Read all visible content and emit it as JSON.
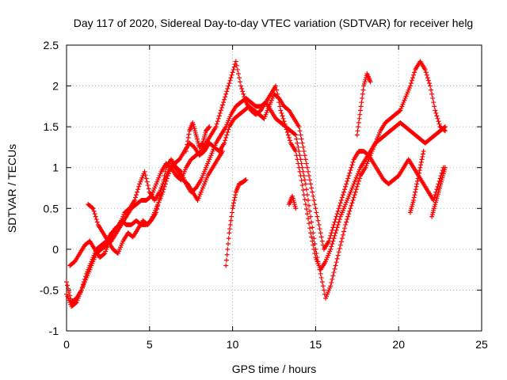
{
  "chart_data": {
    "type": "scatter",
    "title": "Day 117 of 2020, Sidereal Day-to-day VTEC variation (SDTVAR) for receiver helg",
    "xlabel": "GPS time / hours",
    "ylabel": "SDTVAR / TECUs",
    "xlim": [
      0,
      25
    ],
    "ylim": [
      -1,
      2.5
    ],
    "xticks": [
      "0",
      "5",
      "10",
      "15",
      "20",
      "25"
    ],
    "yticks": [
      "-1",
      "-0.5",
      "0",
      "0.5",
      "1",
      "1.5",
      "2",
      "2.5"
    ],
    "grid": true,
    "legend": "none",
    "marker": "+",
    "color": "#ff0000",
    "series": [
      {
        "x": [
          0.0,
          0.3,
          0.6,
          0.9,
          1.2,
          1.5,
          1.8,
          2.1,
          2.4,
          2.7,
          3.0,
          3.3,
          3.6,
          3.9,
          4.2,
          4.5,
          4.8,
          5.1,
          5.4,
          5.7,
          6.0,
          6.3,
          6.6,
          6.9,
          7.2,
          7.5,
          7.8,
          8.1,
          8.4,
          8.7,
          9.0,
          9.3,
          9.6,
          9.9,
          10.2,
          10.5,
          10.8,
          11.1,
          11.4,
          11.7,
          12.0,
          12.3,
          12.6,
          12.9,
          13.2,
          13.5,
          13.8,
          14.1,
          14.4,
          14.7,
          15.0,
          15.3,
          15.6,
          15.9,
          16.2,
          16.5,
          16.8,
          17.1,
          17.4,
          17.7,
          18.0,
          18.3,
          18.6,
          18.9,
          19.2,
          19.5,
          19.8,
          20.1,
          20.4,
          20.7,
          21.0,
          21.3,
          21.6,
          21.9,
          22.2,
          22.5,
          22.8
        ],
        "y": [
          -0.4,
          -0.65,
          -0.6,
          -0.5,
          -0.3,
          -0.15,
          0.0,
          0.05,
          0.1,
          0.2,
          0.25,
          0.35,
          0.3,
          0.3,
          0.35,
          0.3,
          0.3,
          0.35,
          0.45,
          0.7,
          1.0,
          1.1,
          1.0,
          0.95,
          0.8,
          0.7,
          0.75,
          0.85,
          1.0,
          1.15,
          1.3,
          1.4,
          1.5,
          1.65,
          1.75,
          1.8,
          1.85,
          1.8,
          1.75,
          1.75,
          1.8,
          1.9,
          2.0,
          1.7,
          1.5,
          1.3,
          1.2,
          0.9,
          0.55,
          0.2,
          -0.1,
          -0.25,
          -0.15,
          0.0,
          0.2,
          0.4,
          0.55,
          0.7,
          0.85,
          1.0,
          1.1,
          1.2,
          1.3,
          1.35,
          1.4,
          1.45,
          1.5,
          1.55,
          1.5,
          1.45,
          1.4,
          1.35,
          1.3,
          1.35,
          1.4,
          1.45,
          1.5
        ]
      },
      {
        "x": [
          0.0,
          0.3,
          0.6,
          0.9,
          1.2,
          1.5,
          1.8,
          2.1,
          2.4,
          2.7,
          3.0,
          3.3,
          3.6,
          3.9,
          4.2,
          4.5,
          4.8,
          5.1,
          5.4,
          5.7,
          6.0,
          6.3,
          6.6,
          6.9,
          7.2,
          7.5,
          7.8,
          8.1,
          8.4,
          8.7,
          9.0,
          9.3,
          9.6,
          9.9,
          10.2,
          10.5,
          10.8,
          11.1,
          11.4,
          11.7,
          12.0,
          12.3,
          12.6,
          12.9,
          13.2,
          13.5,
          13.8,
          14.1,
          14.4,
          14.7,
          15.0,
          15.3,
          15.6,
          15.9,
          16.2,
          16.5,
          16.8,
          17.1,
          17.4,
          17.7,
          18.0,
          18.3,
          18.6,
          18.9,
          19.2,
          19.5,
          19.8,
          20.1,
          20.4,
          20.7,
          21.0,
          21.3,
          21.6,
          21.9,
          22.2,
          22.5,
          22.8
        ],
        "y": [
          -0.55,
          -0.7,
          -0.65,
          -0.5,
          -0.35,
          -0.2,
          -0.05,
          0.0,
          0.05,
          0.1,
          0.2,
          0.3,
          0.4,
          0.5,
          0.55,
          0.6,
          0.6,
          0.65,
          0.8,
          0.95,
          1.05,
          1.0,
          0.9,
          0.85,
          1.0,
          1.1,
          1.15,
          1.2,
          1.3,
          1.4,
          1.5,
          1.7,
          1.9,
          2.1,
          2.3,
          2.0,
          1.8,
          1.7,
          1.65,
          1.7,
          1.8,
          1.7,
          1.6,
          1.55,
          1.5,
          1.45,
          1.4,
          1.1,
          0.8,
          0.4,
          0.0,
          -0.3,
          -0.6,
          -0.45,
          -0.2,
          0.05,
          0.3,
          0.5,
          0.7,
          0.9,
          1.0,
          1.15,
          1.3,
          1.45,
          1.55,
          1.6,
          1.65,
          1.7,
          1.85,
          2.0,
          2.2,
          2.3,
          2.2,
          2.0,
          1.7,
          1.5,
          1.45
        ]
      },
      {
        "x": [
          0.2,
          0.5,
          0.8,
          1.1,
          1.4,
          1.7,
          2.0,
          2.3,
          2.6,
          2.9,
          3.2,
          3.5,
          3.8,
          4.1,
          4.4,
          4.7,
          5.0,
          5.3,
          5.6,
          5.9,
          6.2,
          6.5,
          6.8,
          7.1,
          7.4,
          7.7,
          8.0,
          8.3,
          8.6,
          8.9,
          9.2,
          9.5,
          9.8,
          10.1,
          10.4,
          10.7,
          11.0,
          11.3,
          11.6,
          11.9,
          12.2,
          12.5,
          12.8,
          13.1,
          13.4,
          13.7,
          14.0,
          14.3,
          14.6,
          14.9,
          15.2,
          15.5,
          15.8,
          16.1,
          16.4,
          16.7,
          17.0,
          17.3,
          17.6,
          17.9,
          18.2,
          18.5,
          18.8,
          19.1,
          19.4,
          19.7,
          20.0,
          20.3,
          20.6,
          20.9,
          21.2,
          21.5,
          21.8,
          22.1,
          22.4,
          22.7
        ],
        "y": [
          -0.2,
          -0.15,
          -0.05,
          0.05,
          0.1,
          0.0,
          -0.1,
          -0.05,
          0.1,
          0.25,
          0.3,
          0.45,
          0.5,
          0.6,
          0.8,
          0.95,
          0.7,
          0.6,
          0.7,
          0.85,
          1.0,
          1.05,
          1.1,
          1.2,
          1.3,
          1.25,
          1.15,
          1.2,
          1.3,
          1.25,
          1.2,
          1.3,
          1.5,
          1.6,
          1.65,
          1.7,
          1.75,
          1.7,
          1.65,
          1.6,
          1.75,
          1.9,
          1.85,
          1.75,
          1.7,
          1.6,
          1.5,
          1.2,
          0.9,
          0.6,
          0.3,
          0.0,
          0.1,
          0.3,
          0.5,
          0.7,
          0.9,
          1.1,
          1.2,
          1.2,
          1.15,
          1.05,
          0.95,
          0.85,
          0.8,
          0.85,
          0.9,
          1.0,
          1.1,
          1.0,
          0.9,
          0.8,
          0.7,
          0.6,
          0.8,
          1.0
        ]
      },
      {
        "x": [
          1.3,
          1.6,
          1.9,
          2.2,
          2.5,
          2.8,
          3.1,
          3.4,
          3.7,
          4.0,
          4.3,
          4.6,
          4.9,
          5.2,
          5.5,
          5.8,
          6.1,
          6.4,
          6.7,
          7.0,
          7.3,
          7.6,
          7.9,
          8.2,
          8.5,
          8.8,
          9.1,
          9.4
        ],
        "y": [
          0.55,
          0.5,
          0.3,
          0.2,
          0.1,
          0.0,
          -0.05,
          0.1,
          0.2,
          0.15,
          0.25,
          0.35,
          0.3,
          0.4,
          0.55,
          0.7,
          0.9,
          1.05,
          0.95,
          0.85,
          0.8,
          0.7,
          0.6,
          0.75,
          0.9,
          1.0,
          1.1,
          1.2
        ]
      },
      {
        "x": [
          7.2,
          7.4,
          7.6,
          7.8,
          8.0,
          8.2,
          8.4,
          8.6
        ],
        "y": [
          1.2,
          1.45,
          1.55,
          1.4,
          1.25,
          1.3,
          1.45,
          1.5
        ]
      },
      {
        "x": [
          9.6,
          9.8,
          10.0,
          10.2,
          10.4,
          10.6,
          10.8
        ],
        "y": [
          -0.2,
          0.2,
          0.5,
          0.7,
          0.8,
          0.82,
          0.85
        ]
      },
      {
        "x": [
          17.5,
          17.7,
          17.9,
          18.1,
          18.3
        ],
        "y": [
          1.4,
          1.7,
          2.0,
          2.15,
          2.05
        ]
      },
      {
        "x": [
          20.7,
          20.9,
          21.1,
          21.3,
          21.5
        ],
        "y": [
          0.45,
          0.6,
          0.8,
          1.0,
          1.2
        ]
      },
      {
        "x": [
          22.0,
          22.2,
          22.4,
          22.6,
          22.8
        ],
        "y": [
          0.4,
          0.55,
          0.7,
          0.85,
          1.0
        ]
      },
      {
        "x": [
          13.4,
          13.6,
          13.8
        ],
        "y": [
          0.55,
          0.65,
          0.5
        ]
      }
    ]
  }
}
